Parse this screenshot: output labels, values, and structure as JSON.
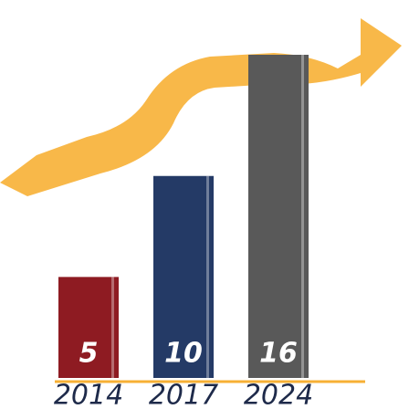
{
  "chart_data": {
    "type": "bar",
    "categories": [
      "2014",
      "2017",
      "2024"
    ],
    "values": [
      5,
      10,
      16
    ],
    "colors": [
      "#8e1b22",
      "#243a66",
      "#595959"
    ]
  }
}
